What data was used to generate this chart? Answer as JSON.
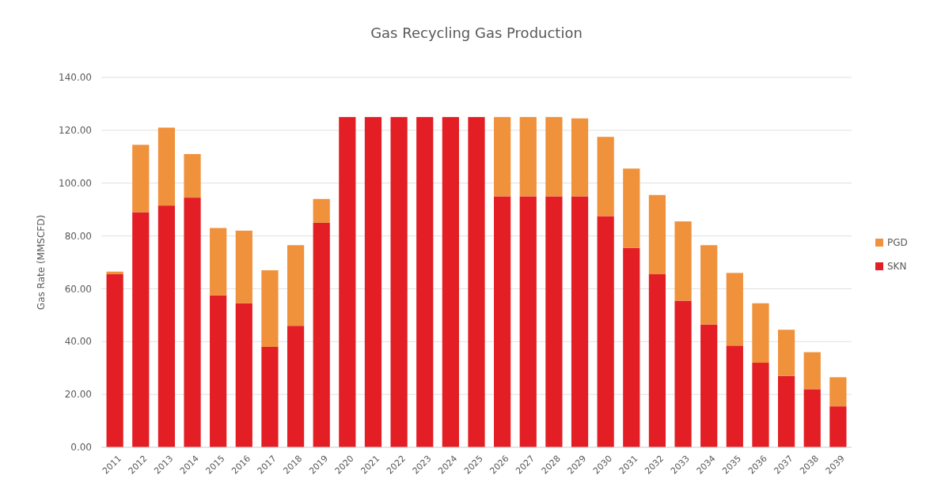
{
  "chart_data": {
    "type": "bar",
    "title": "Gas Recycling Gas Production",
    "ylabel": "Gas Rate (MMSCFD)",
    "categories": [
      "2011",
      "2012",
      "2013",
      "2014",
      "2015",
      "2016",
      "2017",
      "2018",
      "2019",
      "2020",
      "2021",
      "2022",
      "2023",
      "2024",
      "2025",
      "2026",
      "2027",
      "2028",
      "2029",
      "2030",
      "2031",
      "2032",
      "2033",
      "2034",
      "2035",
      "2036",
      "2037",
      "2038",
      "2039"
    ],
    "series": [
      {
        "name": "SKN",
        "color": "#e31e24",
        "values": [
          65.5,
          89,
          91.5,
          94.5,
          57.5,
          54.5,
          38,
          46,
          85,
          125,
          125,
          125,
          125,
          125,
          125,
          95,
          95,
          95,
          95,
          87.5,
          75.5,
          65.5,
          55.5,
          46.5,
          38.5,
          32,
          27,
          22,
          15.5
        ]
      },
      {
        "name": "PGD",
        "color": "#f0913c",
        "values": [
          1,
          25.5,
          29.5,
          16.5,
          25.5,
          27.5,
          29,
          30.5,
          9,
          0,
          0,
          0,
          0,
          0,
          0,
          30,
          30,
          30,
          29.5,
          30,
          30,
          30,
          30,
          30,
          27.5,
          22.5,
          17.5,
          14,
          11
        ]
      }
    ],
    "stacked": true,
    "ylim": [
      0,
      140
    ],
    "yticks": [
      {
        "value": 0,
        "label": "0.00"
      },
      {
        "value": 20,
        "label": "20.00"
      },
      {
        "value": 40,
        "label": "40.00"
      },
      {
        "value": 60,
        "label": "60.00"
      },
      {
        "value": 80,
        "label": "80.00"
      },
      {
        "value": 100,
        "label": "100.00"
      },
      {
        "value": 120,
        "label": "120.00"
      },
      {
        "value": 140,
        "label": "140.00"
      }
    ],
    "grid": "y",
    "legend": "right"
  }
}
